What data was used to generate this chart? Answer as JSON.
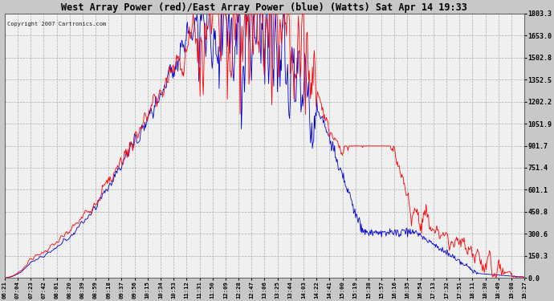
{
  "title": "West Array Power (red)/East Array Power (blue) (Watts) Sat Apr 14 19:33",
  "copyright": "Copyright 2007 Cartronics.com",
  "background_color": "#c8c8c8",
  "plot_bg_color": "#f0f0f0",
  "grid_color": "#aaaaaa",
  "red_color": "#ff0000",
  "blue_color": "#0000cc",
  "ymin": 0.0,
  "ymax": 1803.3,
  "yticks": [
    0.0,
    150.3,
    300.6,
    450.8,
    601.1,
    751.4,
    901.7,
    1051.9,
    1202.2,
    1352.5,
    1502.8,
    1653.0,
    1803.3
  ],
  "x_labels": [
    "06:21",
    "07:04",
    "07:23",
    "07:42",
    "08:01",
    "08:20",
    "08:39",
    "08:59",
    "09:18",
    "09:37",
    "09:56",
    "10:15",
    "10:34",
    "10:53",
    "11:12",
    "11:31",
    "11:50",
    "12:09",
    "12:28",
    "12:47",
    "13:06",
    "13:25",
    "13:44",
    "14:03",
    "14:22",
    "14:41",
    "15:00",
    "15:19",
    "15:38",
    "15:57",
    "16:16",
    "16:35",
    "16:54",
    "17:13",
    "17:32",
    "17:51",
    "18:11",
    "18:30",
    "18:49",
    "19:08",
    "19:27"
  ],
  "n_points": 820,
  "seed_red": 7,
  "seed_blue": 13
}
